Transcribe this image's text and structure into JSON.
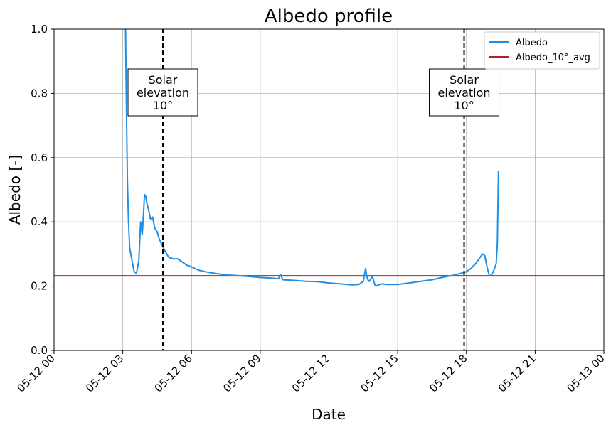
{
  "chart_data": {
    "type": "line",
    "title": "Albedo profile",
    "xlabel": "Date",
    "ylabel": "Albedo [-]",
    "xlim": [
      0,
      24
    ],
    "ylim": [
      0.0,
      1.0
    ],
    "x_ticks": [
      {
        "value": 0,
        "label": "05-12 00"
      },
      {
        "value": 3,
        "label": "05-12 03"
      },
      {
        "value": 6,
        "label": "05-12 06"
      },
      {
        "value": 9,
        "label": "05-12 09"
      },
      {
        "value": 12,
        "label": "05-12 12"
      },
      {
        "value": 15,
        "label": "05-12 15"
      },
      {
        "value": 18,
        "label": "05-12 18"
      },
      {
        "value": 21,
        "label": "05-12 21"
      },
      {
        "value": 24,
        "label": "05-13 00"
      }
    ],
    "y_ticks": [
      {
        "value": 0.0,
        "label": "0.0"
      },
      {
        "value": 0.2,
        "label": "0.2"
      },
      {
        "value": 0.4,
        "label": "0.4"
      },
      {
        "value": 0.6,
        "label": "0.6"
      },
      {
        "value": 0.8,
        "label": "0.8"
      },
      {
        "value": 1.0,
        "label": "1.0"
      }
    ],
    "grid": true,
    "legend_position": "top-right",
    "series": [
      {
        "name": "Albedo",
        "color": "#1f8fe6",
        "x": [
          3.12,
          3.15,
          3.2,
          3.25,
          3.3,
          3.4,
          3.5,
          3.6,
          3.7,
          3.78,
          3.85,
          3.9,
          3.95,
          4.0,
          4.05,
          4.15,
          4.2,
          4.25,
          4.3,
          4.4,
          4.5,
          4.6,
          4.7,
          4.8,
          5.0,
          5.2,
          5.4,
          5.6,
          5.8,
          6.0,
          6.3,
          6.6,
          7.0,
          7.5,
          8.0,
          8.5,
          9.0,
          9.5,
          9.8,
          9.85,
          9.9,
          9.95,
          10.0,
          10.5,
          11.0,
          11.5,
          12.0,
          12.5,
          13.0,
          13.3,
          13.5,
          13.6,
          13.65,
          13.7,
          13.75,
          13.8,
          13.9,
          14.0,
          14.05,
          14.1,
          14.2,
          14.3,
          14.5,
          15.0,
          15.5,
          16.0,
          16.5,
          17.0,
          17.5,
          18.0,
          18.2,
          18.4,
          18.5,
          18.6,
          18.65,
          18.7,
          18.8,
          18.9,
          19.0,
          19.1,
          19.2,
          19.3,
          19.35,
          19.4
        ],
        "y": [
          1.0,
          0.8,
          0.53,
          0.4,
          0.32,
          0.28,
          0.245,
          0.24,
          0.28,
          0.4,
          0.36,
          0.42,
          0.485,
          0.48,
          0.46,
          0.43,
          0.41,
          0.41,
          0.415,
          0.38,
          0.37,
          0.345,
          0.33,
          0.315,
          0.29,
          0.285,
          0.285,
          0.275,
          0.265,
          0.26,
          0.25,
          0.245,
          0.24,
          0.235,
          0.233,
          0.23,
          0.227,
          0.225,
          0.223,
          0.232,
          0.235,
          0.225,
          0.22,
          0.218,
          0.215,
          0.214,
          0.21,
          0.207,
          0.204,
          0.205,
          0.215,
          0.255,
          0.23,
          0.22,
          0.215,
          0.22,
          0.23,
          0.205,
          0.2,
          0.202,
          0.205,
          0.207,
          0.205,
          0.205,
          0.21,
          0.215,
          0.22,
          0.228,
          0.235,
          0.245,
          0.255,
          0.27,
          0.28,
          0.29,
          0.295,
          0.3,
          0.295,
          0.26,
          0.232,
          0.235,
          0.25,
          0.27,
          0.33,
          0.56
        ]
      },
      {
        "name": "Albedo_10°_avg",
        "color": "#b22222",
        "x": [
          0,
          24
        ],
        "y": [
          0.232,
          0.232
        ]
      }
    ],
    "vlines": [
      {
        "x": 4.75,
        "label_lines": [
          "Solar",
          "elevation",
          "10°"
        ]
      },
      {
        "x": 17.9,
        "label_lines": [
          "Solar",
          "elevation",
          "10°"
        ]
      }
    ]
  }
}
